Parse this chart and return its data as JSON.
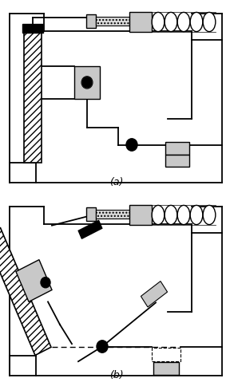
{
  "title_a": "(a)",
  "title_b": "(b)",
  "bg_color": "#ffffff",
  "lc": "#000000",
  "gray": "#c8c8c8",
  "light_gray": "#d8d8d8"
}
